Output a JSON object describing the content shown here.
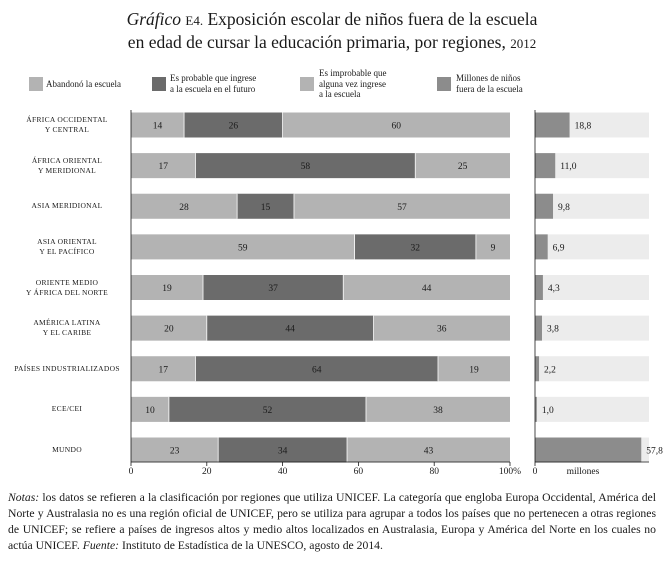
{
  "title": {
    "prefix": "Gráfico",
    "code": "E4.",
    "line1_rest": "Exposición escolar de niños fuera de la escuela",
    "line2": "en edad de cursar la educación primaria, por regiones,",
    "year": "2012"
  },
  "legend": [
    {
      "label": "Abandonó la escuela",
      "color": "#b3b3b3"
    },
    {
      "label": "Es probable que ingrese\na la escuela en el futuro",
      "color": "#6b6b6b"
    },
    {
      "label": "Es improbable que\nalguna vez ingrese\na la escuela",
      "color": "#b3b3b3"
    },
    {
      "label": "Millones de niños\nfuera de la escuela",
      "color": "#8c8c8c"
    }
  ],
  "chart_data": {
    "type": "bar",
    "orientation": "horizontal",
    "stacked": true,
    "categories": [
      "ÁFRICA OCCIDENTAL\nY CENTRAL",
      "ÁFRICA ORIENTAL\nY MERIDIONAL",
      "ASIA MERIDIONAL",
      "ASIA ORIENTAL\nY EL PACÍFICO",
      "ORIENTE MEDIO\nY ÁFRICA DEL NORTE",
      "AMÉRICA LATINA\nY EL CARIBE",
      "PAÍSES INDUSTRIALIZADOS",
      "ECE/CEI",
      "MUNDO"
    ],
    "series": [
      {
        "name": "Abandonó la escuela",
        "values": [
          14,
          17,
          28,
          59,
          19,
          20,
          17,
          10,
          23
        ]
      },
      {
        "name": "Es probable que ingrese a la escuela en el futuro",
        "values": [
          26,
          58,
          15,
          32,
          37,
          44,
          64,
          52,
          34
        ]
      },
      {
        "name": "Es improbable que alguna vez ingrese a la escuela",
        "values": [
          60,
          25,
          57,
          9,
          44,
          36,
          19,
          38,
          43
        ]
      }
    ],
    "millions": {
      "name": "Millones de niños fuera de la escuela",
      "values": [
        18.8,
        11.0,
        9.8,
        6.9,
        4.3,
        3.8,
        2.2,
        1.0,
        57.8
      ],
      "labels": [
        "18,8",
        "11,0",
        "9,8",
        "6,9",
        "4,3",
        "3,8",
        "2,2",
        "1,0",
        "57,8"
      ],
      "xmin": 0,
      "axis_tick_label": "0",
      "axis_label": "millones"
    },
    "xlim": [
      0,
      100
    ],
    "xticks": [
      0,
      20,
      40,
      60,
      80,
      100
    ],
    "xtick_labels": [
      "0",
      "20",
      "40",
      "60",
      "80",
      "100%"
    ]
  },
  "notes": {
    "label": "Notas:",
    "text": " los datos se refieren a la clasificación por regiones que utiliza UNICEF. La categoría que engloba Europa Occidental, América del Norte y Australasia no es una región oficial de UNICEF, pero se utiliza para agrupar a todos los países que no pertenecen a otras regiones de UNICEF; se refiere a países de ingresos altos y medio altos localizados en Australasia, Europa y América del Norte en los cuales no actúa UNICEF.",
    "source_label": "Fuente:",
    "source_text": " Instituto de Estadística de la UNESCO, agosto de 2014."
  }
}
